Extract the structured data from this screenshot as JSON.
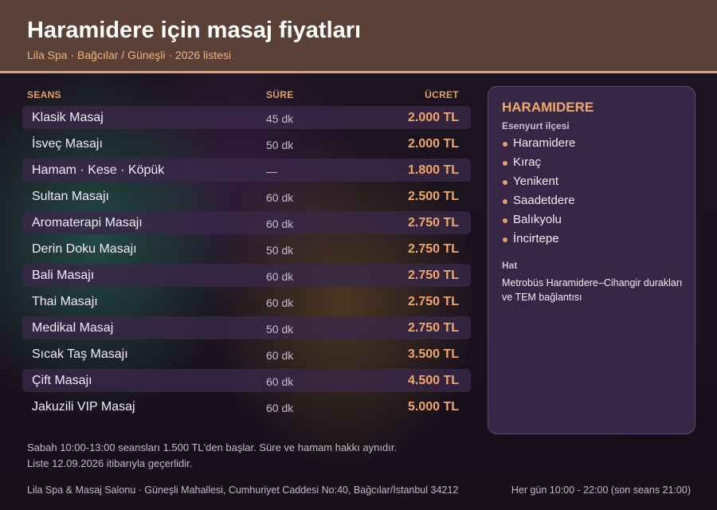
{
  "header": {
    "title": "Haramidere için masaj fiyatları",
    "subtitle": "Lila Spa · Bağcılar / Güneşli · 2026 listesi"
  },
  "columns": {
    "name": "SEANS",
    "duration": "SÜRE",
    "price": "ÜCRET"
  },
  "services": [
    {
      "name": "Klasik Masaj",
      "duration": "45 dk",
      "price": "2.000 TL"
    },
    {
      "name": "İsveç Masajı",
      "duration": "50 dk",
      "price": "2.000 TL"
    },
    {
      "name": "Hamam · Kese · Köpük",
      "duration": "—",
      "price": "1.800 TL"
    },
    {
      "name": "Sultan Masajı",
      "duration": "60 dk",
      "price": "2.500 TL"
    },
    {
      "name": "Aromaterapi Masajı",
      "duration": "60 dk",
      "price": "2.750 TL"
    },
    {
      "name": "Derin Doku Masajı",
      "duration": "50 dk",
      "price": "2.750 TL"
    },
    {
      "name": "Bali Masajı",
      "duration": "60 dk",
      "price": "2.750 TL"
    },
    {
      "name": "Thai Masajı",
      "duration": "60 dk",
      "price": "2.750 TL"
    },
    {
      "name": "Medikal Masaj",
      "duration": "50 dk",
      "price": "2.750 TL"
    },
    {
      "name": "Sıcak Taş Masajı",
      "duration": "60 dk",
      "price": "3.500 TL"
    },
    {
      "name": "Çift Masajı",
      "duration": "60 dk",
      "price": "4.500 TL"
    },
    {
      "name": "Jakuzili VIP Masaj",
      "duration": "60 dk",
      "price": "5.000 TL"
    }
  ],
  "panel": {
    "title": "HARAMIDERE",
    "subtitle": "Esenyurt ilçesi",
    "neighborhoods": [
      "Haramidere",
      "Kıraç",
      "Yenikent",
      "Saadetdere",
      "Balıkyolu",
      "İncirtepe"
    ],
    "transit_label": "Hat",
    "transit_text": "Metrobüs Haramidere–Cihangir durakları ve TEM bağlantısı"
  },
  "notes": {
    "line1": "Sabah 10:00-13:00 seansları 1.500 TL'den başlar. Süre ve hamam hakkı aynıdır.",
    "line2": "Liste 12.09.2026 itibarıyla geçerlidir."
  },
  "footer": {
    "address": "Lila Spa & Masaj Salonu · Güneşli Mahallesi, Cumhuriyet Caddesi No:40, Bağcılar/İstanbul 34212",
    "hours": "Her gün 10:00 - 22:00 (son seans 21:00)"
  },
  "colors": {
    "header_bg": "#5b4038",
    "accent": "#e0a06a",
    "price": "#f0a868",
    "panel_bg": "#372744",
    "row_alt": "#3a2848"
  }
}
